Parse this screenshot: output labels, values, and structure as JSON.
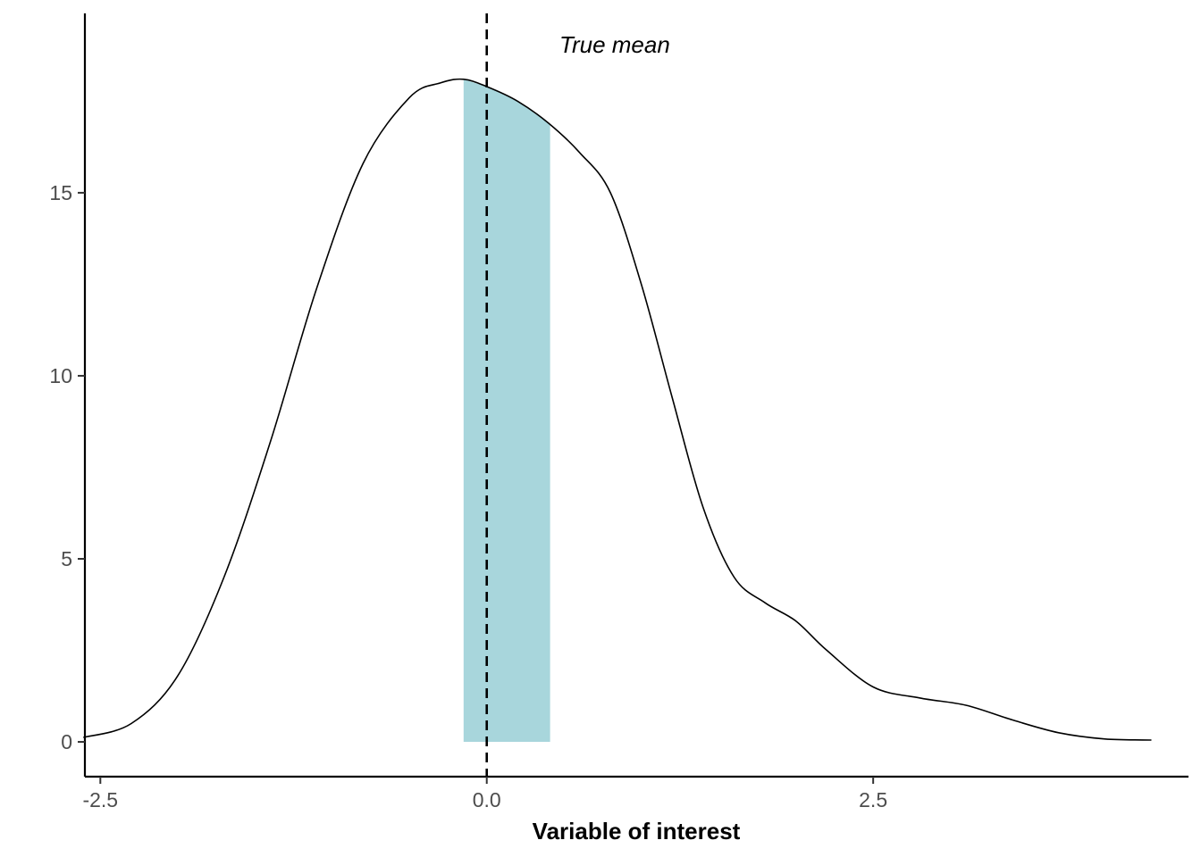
{
  "chart_data": {
    "type": "area",
    "title": "",
    "xlabel": "Variable of interest",
    "ylabel": "",
    "xlim": [
      -2.6,
      4.54
    ],
    "ylim": [
      -0.95,
      19.9
    ],
    "grid": false,
    "x_ticks": [
      {
        "value": -2.5,
        "label": "-2.5"
      },
      {
        "value": 0.0,
        "label": "0.0"
      },
      {
        "value": 2.5,
        "label": "2.5"
      }
    ],
    "y_ticks": [
      {
        "value": 0,
        "label": "0"
      },
      {
        "value": 5,
        "label": "5"
      },
      {
        "value": 10,
        "label": "10"
      },
      {
        "value": 15,
        "label": "15"
      }
    ],
    "density": {
      "x": [
        -2.61,
        -2.3,
        -2.0,
        -1.7,
        -1.4,
        -1.1,
        -0.8,
        -0.5,
        -0.3,
        -0.15,
        0.0,
        0.2,
        0.4,
        0.6,
        0.8,
        1.0,
        1.2,
        1.4,
        1.6,
        1.8,
        2.0,
        2.2,
        2.5,
        2.8,
        3.1,
        3.4,
        3.7,
        4.0,
        4.3,
        4.25
      ],
      "y": [
        0.12,
        0.5,
        1.8,
        4.5,
        8.2,
        12.4,
        15.8,
        17.6,
        18.0,
        18.1,
        17.9,
        17.5,
        16.9,
        16.1,
        15.0,
        12.5,
        9.4,
        6.4,
        4.5,
        3.8,
        3.3,
        2.5,
        1.5,
        1.2,
        1.0,
        0.6,
        0.25,
        0.08,
        0.05,
        0.05
      ],
      "color": "#000000"
    },
    "shaded_region": {
      "x_start": -0.15,
      "x_end": 0.41,
      "color": "#a8d6dc"
    },
    "reference_line": {
      "x": 0.0,
      "style": "dashed",
      "color": "#000000",
      "label": "True mean",
      "label_x": 0.47,
      "label_y": 19.05
    }
  }
}
